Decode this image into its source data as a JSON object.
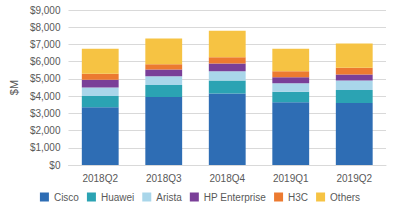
{
  "chart_data": {
    "type": "bar",
    "stacked": true,
    "grid": true,
    "legend": "bottom",
    "y_label": "$M",
    "categories": [
      "2018Q2",
      "2018Q3",
      "2018Q4",
      "2019Q1",
      "2019Q2"
    ],
    "series": [
      {
        "name": "Cisco",
        "color": "#2e6db4",
        "values": [
          3350,
          3950,
          4150,
          3650,
          3600
        ]
      },
      {
        "name": "Huawei",
        "color": "#2ba3b3",
        "values": [
          650,
          700,
          750,
          600,
          750
        ]
      },
      {
        "name": "Arista",
        "color": "#a9d6ea",
        "values": [
          500,
          500,
          550,
          500,
          550
        ]
      },
      {
        "name": "HP Enterprise",
        "color": "#7a3f98",
        "values": [
          450,
          400,
          450,
          350,
          350
        ]
      },
      {
        "name": "H3C",
        "color": "#ec7a30",
        "values": [
          350,
          300,
          350,
          350,
          400
        ]
      },
      {
        "name": "Others",
        "color": "#f6c343",
        "values": [
          1450,
          1500,
          1550,
          1300,
          1400
        ]
      }
    ],
    "ylim": [
      0,
      9000
    ],
    "yticks": [
      {
        "value": 0,
        "label": "$0"
      },
      {
        "value": 1000,
        "label": "$1,000"
      },
      {
        "value": 2000,
        "label": "$2,000"
      },
      {
        "value": 3000,
        "label": "$3,000"
      },
      {
        "value": 4000,
        "label": "$4,000"
      },
      {
        "value": 5000,
        "label": "$5,000"
      },
      {
        "value": 6000,
        "label": "$6,000"
      },
      {
        "value": 7000,
        "label": "$7,000"
      },
      {
        "value": 8000,
        "label": "$8,000"
      },
      {
        "value": 9000,
        "label": "$9,000"
      }
    ]
  }
}
